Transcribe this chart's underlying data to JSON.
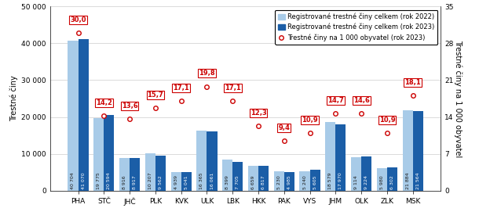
{
  "categories": [
    "PHA",
    "STČ",
    "JHČ",
    "PLK",
    "KVK",
    "ULK",
    "LBK",
    "HKK",
    "PAK",
    "VYS",
    "JHM",
    "OLK",
    "ZLK",
    "MSK"
  ],
  "values_2022": [
    40704,
    19775,
    8916,
    10207,
    4939,
    16365,
    8399,
    6659,
    5230,
    5240,
    18579,
    9114,
    5980,
    21884
  ],
  "values_2023": [
    41070,
    20594,
    8917,
    9562,
    5041,
    16061,
    7705,
    6817,
    4985,
    5605,
    17970,
    9224,
    6302,
    21564
  ],
  "labels_2022": [
    "40 704",
    "19 775",
    "8 916",
    "10 207",
    "4 939",
    "16 365",
    "8 399",
    "6 659",
    "5 230",
    "5 240",
    "18 579",
    "9 114",
    "5 980",
    "21 884"
  ],
  "labels_2023": [
    "41 070",
    "20 594",
    "8 917",
    "9 562",
    "5 041",
    "16 061",
    "7 705",
    "6 817",
    "4 985",
    "5 605",
    "17 970",
    "9 224",
    "6 302",
    "21 564"
  ],
  "rate_2023": [
    30.0,
    14.2,
    13.6,
    15.7,
    17.1,
    19.8,
    17.1,
    12.3,
    9.4,
    10.9,
    14.7,
    14.6,
    10.9,
    18.1
  ],
  "rate_labels": [
    "30,0",
    "14,2",
    "13,6",
    "15,7",
    "17,1",
    "19,8",
    "17,1",
    "12,3",
    "9,4",
    "10,9",
    "14,7",
    "14,6",
    "10,9",
    "18,1"
  ],
  "bar_color_2022": "#A8CBE8",
  "bar_color_2023": "#1B5EA7",
  "marker_color": "#CC0000",
  "ylabel_left": "Trestné činy",
  "ylabel_right": "Trestné činy na 1 000 obyvatel",
  "ylim_left": [
    0,
    50000
  ],
  "ylim_right": [
    0,
    35
  ],
  "yticks_left": [
    0,
    10000,
    20000,
    30000,
    40000,
    50000
  ],
  "ytick_labels_left": [
    "0",
    "10 000",
    "20 000",
    "30 000",
    "40 000",
    "50 000"
  ],
  "yticks_right": [
    0,
    7,
    14,
    21,
    28,
    35
  ],
  "legend_label_2022": "Registrované trestné činy celkem (rok 2022)",
  "legend_label_2023": "Registrované trestné činy celkem (rok 2023)",
  "legend_label_rate": "Trestné činy na 1 000 obyvatel (rok 2023)"
}
